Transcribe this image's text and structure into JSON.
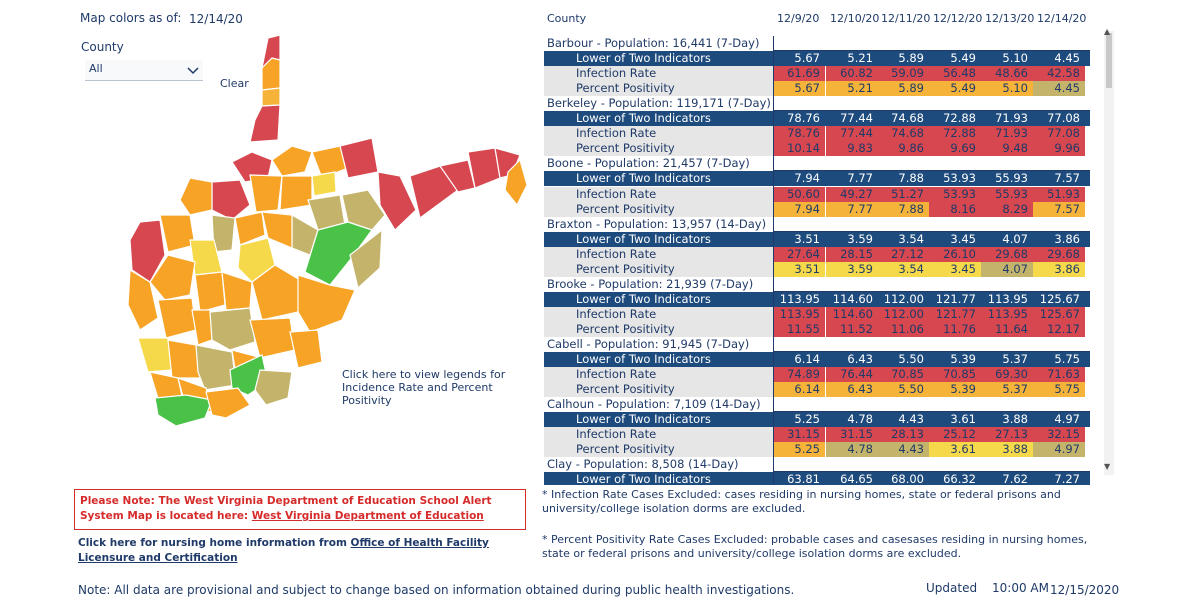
{
  "colors": {
    "red": "#d64750",
    "orange": "#f7a326",
    "gold": "#f5b33a",
    "yellow": "#f6d94a",
    "olive": "#c4b46b",
    "green": "#49c247",
    "navy": "#1e4b7d",
    "gray": "#e6e6e6"
  },
  "filters": {
    "map_colors_label": "Map colors as of:",
    "map_colors_date": "12/14/20",
    "county_label": "County",
    "county_value": "All",
    "clear_label": "Clear"
  },
  "map": {
    "legend_link": "Click here to view legends for Incidence Rate and Percent Positivity"
  },
  "notes": {
    "alert_prefix": "Please Note: The West Virginia Department of Education School Alert System Map is located here: ",
    "alert_link": "West Virginia Department of Education",
    "nursing_prefix": "Click here for nursing home information from ",
    "nursing_link": "Office of Health Facility Licensure and Certification",
    "provisional": "Note: All data are provisional and subject to change based on information obtained during public health investigations.",
    "footnote_infection": "* Infection Rate Cases Excluded: cases residing in nursing homes, state or federal prisons and university/college isolation dorms are excluded.",
    "footnote_positivity": "* Percent Positivity Rate Cases Excluded: probable cases and casesases residing in nursing homes, state or federal prisons and university/college isolation dorms are excluded.",
    "updated_label": "Updated",
    "updated_time": "10:00 AM",
    "updated_date": "12/15/2020"
  },
  "table": {
    "county_header": "County",
    "dates": [
      "12/9/20",
      "12/10/20",
      "12/11/20",
      "12/12/20",
      "12/13/20",
      "12/14/20"
    ],
    "indicator_labels": [
      "Lower of Two Indicators",
      "Infection Rate",
      "Percent Positivity"
    ],
    "counties": [
      {
        "label": "Barbour - Population: 16,441 (7-Day)",
        "lower": [
          "5.67",
          "5.21",
          "5.89",
          "5.49",
          "5.10",
          "4.45"
        ],
        "infection": [
          "61.69",
          "60.82",
          "59.09",
          "56.48",
          "48.66",
          "42.58"
        ],
        "positivity": [
          "5.67",
          "5.21",
          "5.89",
          "5.49",
          "5.10",
          "4.45"
        ],
        "inf_colors": [
          "red",
          "red",
          "red",
          "red",
          "red",
          "red"
        ],
        "pos_colors": [
          "gold",
          "gold",
          "gold",
          "gold",
          "gold",
          "olive"
        ]
      },
      {
        "label": "Berkeley - Population: 119,171 (7-Day)",
        "lower": [
          "78.76",
          "77.44",
          "74.68",
          "72.88",
          "71.93",
          "77.08"
        ],
        "infection": [
          "78.76",
          "77.44",
          "74.68",
          "72.88",
          "71.93",
          "77.08"
        ],
        "positivity": [
          "10.14",
          "9.83",
          "9.86",
          "9.69",
          "9.48",
          "9.96"
        ],
        "inf_colors": [
          "red",
          "red",
          "red",
          "red",
          "red",
          "red"
        ],
        "pos_colors": [
          "red",
          "red",
          "red",
          "red",
          "red",
          "red"
        ]
      },
      {
        "label": "Boone - Population: 21,457 (7-Day)",
        "lower": [
          "7.94",
          "7.77",
          "7.88",
          "53.93",
          "55.93",
          "7.57"
        ],
        "infection": [
          "50.60",
          "49.27",
          "51.27",
          "53.93",
          "55.93",
          "51.93"
        ],
        "positivity": [
          "7.94",
          "7.77",
          "7.88",
          "8.16",
          "8.29",
          "7.57"
        ],
        "inf_colors": [
          "red",
          "red",
          "red",
          "red",
          "red",
          "red"
        ],
        "pos_colors": [
          "gold",
          "gold",
          "gold",
          "red",
          "red",
          "gold"
        ]
      },
      {
        "label": "Braxton - Population: 13,957 (14-Day)",
        "lower": [
          "3.51",
          "3.59",
          "3.54",
          "3.45",
          "4.07",
          "3.86"
        ],
        "infection": [
          "27.64",
          "28.15",
          "27.12",
          "26.10",
          "29.68",
          "29.68"
        ],
        "positivity": [
          "3.51",
          "3.59",
          "3.54",
          "3.45",
          "4.07",
          "3.86"
        ],
        "inf_colors": [
          "red",
          "red",
          "red",
          "red",
          "red",
          "red"
        ],
        "pos_colors": [
          "yellow",
          "yellow",
          "yellow",
          "yellow",
          "olive",
          "yellow"
        ]
      },
      {
        "label": "Brooke - Population: 21,939 (7-Day)",
        "lower": [
          "113.95",
          "114.60",
          "112.00",
          "121.77",
          "113.95",
          "125.67"
        ],
        "infection": [
          "113.95",
          "114.60",
          "112.00",
          "121.77",
          "113.95",
          "125.67"
        ],
        "positivity": [
          "11.55",
          "11.52",
          "11.06",
          "11.76",
          "11.64",
          "12.17"
        ],
        "inf_colors": [
          "red",
          "red",
          "red",
          "red",
          "red",
          "red"
        ],
        "pos_colors": [
          "red",
          "red",
          "red",
          "red",
          "red",
          "red"
        ]
      },
      {
        "label": "Cabell - Population: 91,945 (7-Day)",
        "lower": [
          "6.14",
          "6.43",
          "5.50",
          "5.39",
          "5.37",
          "5.75"
        ],
        "infection": [
          "74.89",
          "76.44",
          "70.85",
          "70.85",
          "69.30",
          "71.63"
        ],
        "positivity": [
          "6.14",
          "6.43",
          "5.50",
          "5.39",
          "5.37",
          "5.75"
        ],
        "inf_colors": [
          "red",
          "red",
          "red",
          "red",
          "red",
          "red"
        ],
        "pos_colors": [
          "gold",
          "gold",
          "gold",
          "gold",
          "gold",
          "gold"
        ]
      },
      {
        "label": "Calhoun - Population: 7,109 (14-Day)",
        "lower": [
          "5.25",
          "4.78",
          "4.43",
          "3.61",
          "3.88",
          "4.97"
        ],
        "infection": [
          "31.15",
          "31.15",
          "28.13",
          "25.12",
          "27.13",
          "32.15"
        ],
        "positivity": [
          "5.25",
          "4.78",
          "4.43",
          "3.61",
          "3.88",
          "4.97"
        ],
        "inf_colors": [
          "red",
          "red",
          "red",
          "red",
          "red",
          "red"
        ],
        "pos_colors": [
          "gold",
          "olive",
          "olive",
          "yellow",
          "yellow",
          "olive"
        ]
      },
      {
        "label": "Clay - Population: 8,508 (14-Day)",
        "lower": [
          "63.81",
          "64.65",
          "68.00",
          "66.32",
          "7.62",
          "7.27"
        ]
      }
    ]
  }
}
